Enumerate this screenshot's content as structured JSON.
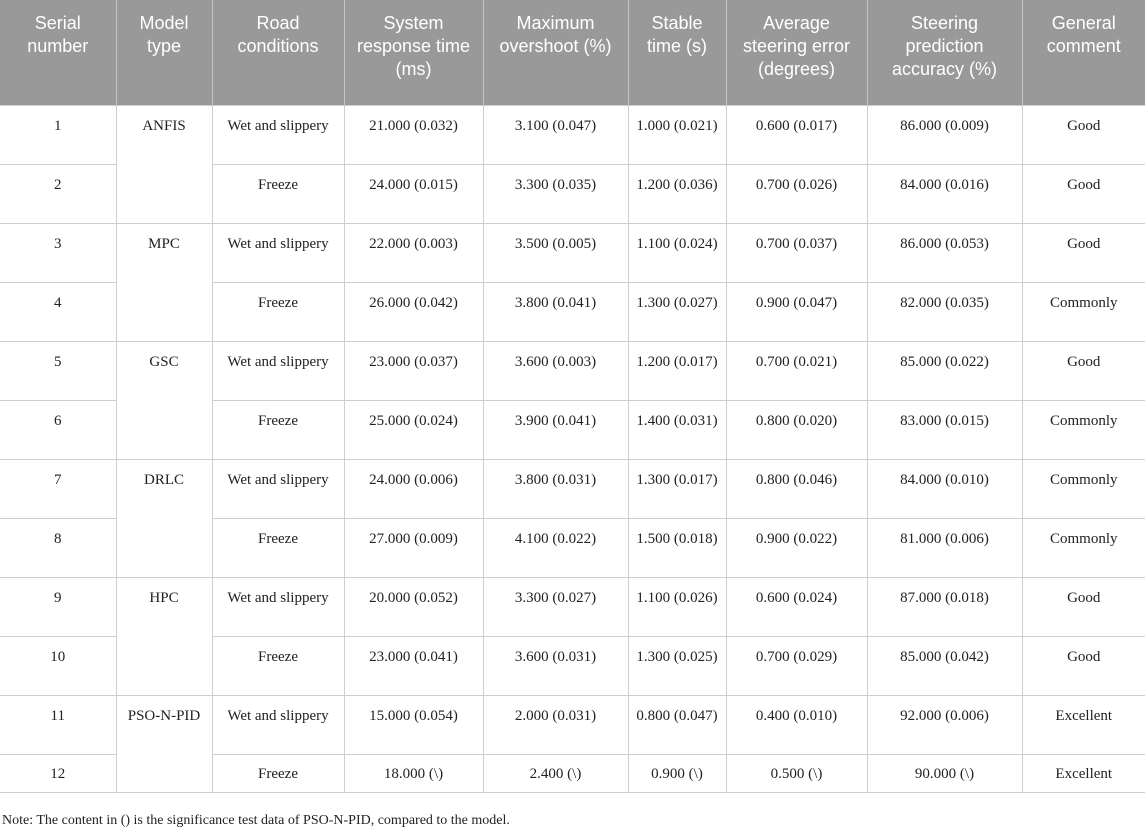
{
  "headers": [
    "Serial number",
    "Model type",
    "Road conditions",
    "System response time (ms)",
    "Maximum overshoot (%)",
    "Stable time (s)",
    "Average steering error (degrees)",
    "Steering prediction accuracy (%)",
    "General comment"
  ],
  "rows": [
    {
      "serial": "1",
      "model": "ANFIS",
      "road": "Wet and slippery",
      "response": "21.000 (0.032)",
      "overshoot": "3.100 (0.047)",
      "stable": "1.000 (0.021)",
      "error": "0.600 (0.017)",
      "accuracy": "86.000 (0.009)",
      "comment": "Good"
    },
    {
      "serial": "2",
      "model": "",
      "road": "Freeze",
      "response": "24.000 (0.015)",
      "overshoot": "3.300 (0.035)",
      "stable": "1.200 (0.036)",
      "error": "0.700 (0.026)",
      "accuracy": "84.000 (0.016)",
      "comment": "Good"
    },
    {
      "serial": "3",
      "model": "MPC",
      "road": "Wet and slippery",
      "response": "22.000 (0.003)",
      "overshoot": "3.500 (0.005)",
      "stable": "1.100 (0.024)",
      "error": "0.700 (0.037)",
      "accuracy": "86.000 (0.053)",
      "comment": "Good"
    },
    {
      "serial": "4",
      "model": "",
      "road": "Freeze",
      "response": "26.000 (0.042)",
      "overshoot": "3.800 (0.041)",
      "stable": "1.300 (0.027)",
      "error": "0.900 (0.047)",
      "accuracy": "82.000 (0.035)",
      "comment": "Commonly"
    },
    {
      "serial": "5",
      "model": "GSC",
      "road": "Wet and slippery",
      "response": "23.000 (0.037)",
      "overshoot": "3.600 (0.003)",
      "stable": "1.200 (0.017)",
      "error": "0.700 (0.021)",
      "accuracy": "85.000 (0.022)",
      "comment": "Good"
    },
    {
      "serial": "6",
      "model": "",
      "road": "Freeze",
      "response": "25.000 (0.024)",
      "overshoot": "3.900 (0.041)",
      "stable": "1.400 (0.031)",
      "error": "0.800 (0.020)",
      "accuracy": "83.000 (0.015)",
      "comment": "Commonly"
    },
    {
      "serial": "7",
      "model": "DRLC",
      "road": "Wet and slippery",
      "response": "24.000 (0.006)",
      "overshoot": "3.800 (0.031)",
      "stable": "1.300 (0.017)",
      "error": "0.800 (0.046)",
      "accuracy": "84.000 (0.010)",
      "comment": "Commonly"
    },
    {
      "serial": "8",
      "model": "",
      "road": "Freeze",
      "response": "27.000 (0.009)",
      "overshoot": "4.100 (0.022)",
      "stable": "1.500 (0.018)",
      "error": "0.900 (0.022)",
      "accuracy": "81.000 (0.006)",
      "comment": "Commonly"
    },
    {
      "serial": "9",
      "model": "HPC",
      "road": "Wet and slippery",
      "response": "20.000 (0.052)",
      "overshoot": "3.300 (0.027)",
      "stable": "1.100 (0.026)",
      "error": "0.600 (0.024)",
      "accuracy": "87.000 (0.018)",
      "comment": "Good"
    },
    {
      "serial": "10",
      "model": "",
      "road": "Freeze",
      "response": "23.000 (0.041)",
      "overshoot": "3.600 (0.031)",
      "stable": "1.300 (0.025)",
      "error": "0.700 (0.029)",
      "accuracy": "85.000 (0.042)",
      "comment": "Good"
    },
    {
      "serial": "11",
      "model": "PSO-N-PID",
      "road": "Wet and slippery",
      "response": "15.000 (0.054)",
      "overshoot": "2.000 (0.031)",
      "stable": "0.800 (0.047)",
      "error": "0.400 (0.010)",
      "accuracy": "92.000 (0.006)",
      "comment": "Excellent"
    },
    {
      "serial": "12",
      "model": "",
      "road": "Freeze",
      "response": "18.000 (\\)",
      "overshoot": "2.400 (\\)",
      "stable": "0.900 (\\)",
      "error": "0.500 (\\)",
      "accuracy": "90.000 (\\)",
      "comment": "Excellent"
    }
  ],
  "note": "Note: The content in () is the significance test data of PSO-N-PID, compared to the model."
}
